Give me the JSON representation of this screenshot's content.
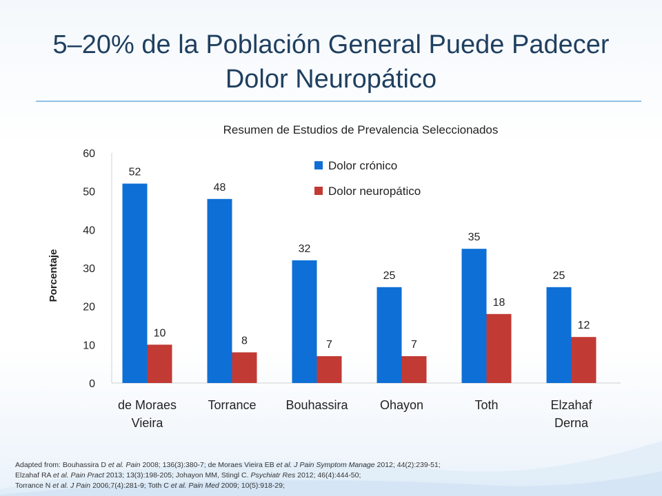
{
  "slide": {
    "title_line1": "5–20% de la Población General Puede Padecer",
    "title_line2": "Dolor Neuropático"
  },
  "colors": {
    "title": "#1f3f5f",
    "rule": "#8ec0e6",
    "series_chronic": "#0e6fd6",
    "series_neuropathic": "#c23a34"
  },
  "chart_data": {
    "type": "bar",
    "title": "Resumen de Estudios de Prevalencia Seleccionados",
    "ylabel": "Porcentaje",
    "xlabel": "",
    "ylim": [
      0,
      60
    ],
    "yticks": [
      0,
      10,
      20,
      30,
      40,
      50,
      60
    ],
    "grid": false,
    "legend_position": "top-right",
    "categories": [
      [
        "de Moraes",
        "Vieira"
      ],
      [
        "Torrance"
      ],
      [
        "Bouhassira"
      ],
      [
        "Ohayon"
      ],
      [
        "Toth"
      ],
      [
        "Elzahaf",
        "Derna"
      ]
    ],
    "series": [
      {
        "name": "Dolor crónico",
        "color": "#0e6fd6",
        "values": [
          52,
          48,
          32,
          25,
          35,
          25
        ]
      },
      {
        "name": "Dolor neuropático",
        "color": "#c23a34",
        "values": [
          10,
          8,
          7,
          7,
          18,
          12
        ]
      }
    ]
  },
  "references": [
    [
      {
        "t": "Adapted from: Bouhassira D "
      },
      {
        "t": "et al. Pain",
        "i": true
      },
      {
        "t": " 2008; 136(3):380-7; de Moraes Vieira EB "
      },
      {
        "t": "et al. J Pain Symptom Manage",
        "i": true
      },
      {
        "t": " 2012; 44(2):239-51;"
      }
    ],
    [
      {
        "t": "Elzahaf RA "
      },
      {
        "t": "et al. Pain Pract",
        "i": true
      },
      {
        "t": " 2013; 13(3):198-205; Johayon MM, Stingl C. "
      },
      {
        "t": "Psychiatr Res",
        "i": true
      },
      {
        "t": " 2012; 46(4):444-50;"
      }
    ],
    [
      {
        "t": "Torrance N "
      },
      {
        "t": "et al. J Pain",
        "i": true
      },
      {
        "t": " 2006;7(4):281-9; Toth C "
      },
      {
        "t": "et al. Pain Med",
        "i": true
      },
      {
        "t": " 2009; 10(5):918-29;"
      }
    ]
  ]
}
